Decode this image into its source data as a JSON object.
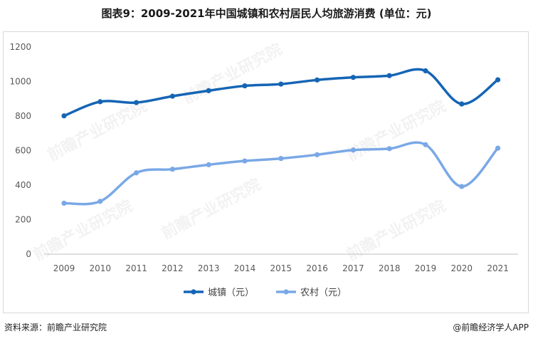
{
  "title": "图表9：2009-2021年中国城镇和农村居民人均旅游消费 (单位：元)",
  "source": "资料来源：前瞻产业研究院",
  "credit": "@前瞻经济学人APP",
  "watermark": "前瞻产业研究院",
  "chart_data": {
    "type": "line",
    "categories": [
      "2009",
      "2010",
      "2011",
      "2012",
      "2013",
      "2014",
      "2015",
      "2016",
      "2017",
      "2018",
      "2019",
      "2020",
      "2021"
    ],
    "series": [
      {
        "name": "城镇（元）",
        "color": "#1565b5",
        "values": [
          801,
          883,
          878,
          915,
          947,
          975,
          985,
          1009,
          1024,
          1034,
          1062,
          870,
          1010
        ]
      },
      {
        "name": "农村（元）",
        "color": "#7aa8e6",
        "values": [
          295,
          306,
          471,
          492,
          518,
          540,
          554,
          576,
          603,
          611,
          634,
          392,
          614
        ]
      }
    ],
    "yticks": [
      "0",
      "200",
      "400",
      "600",
      "800",
      "1000",
      "1200"
    ],
    "ylim": [
      0,
      1200
    ],
    "grid": false,
    "legend": "bottom"
  }
}
